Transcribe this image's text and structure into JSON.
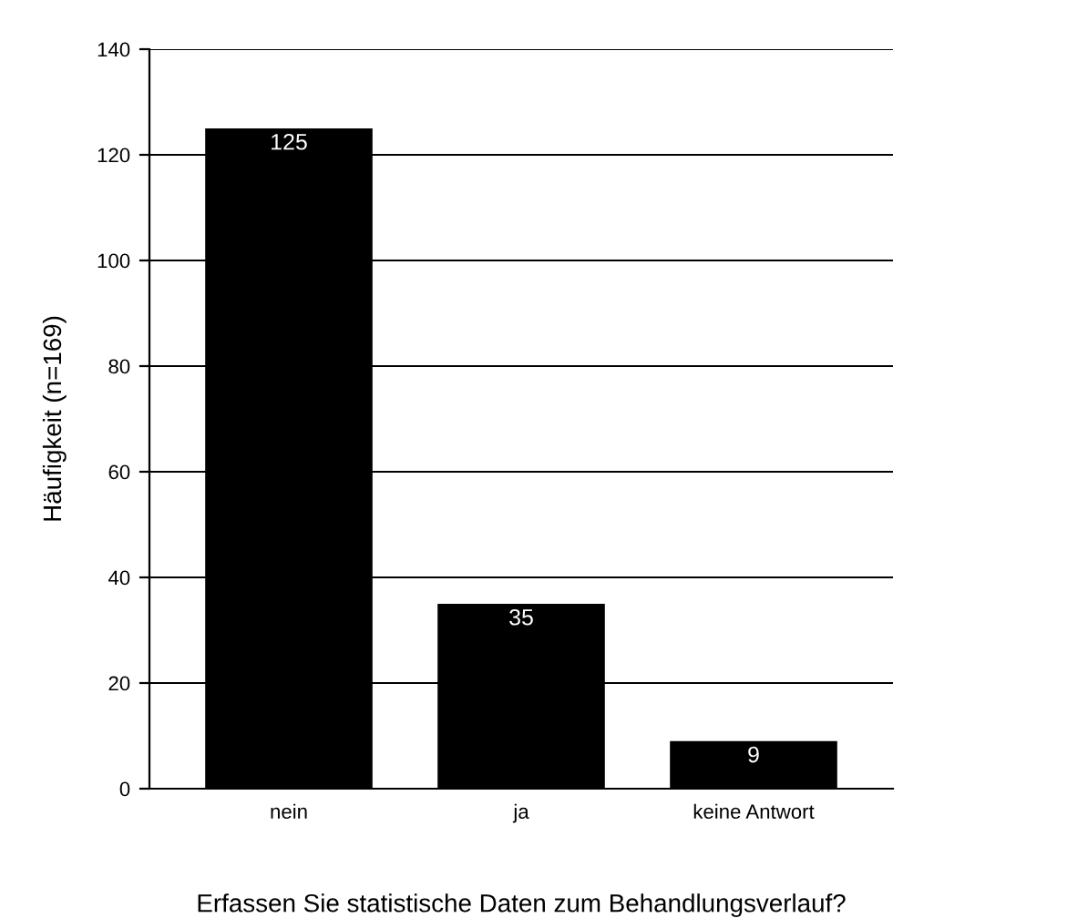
{
  "chart_data": {
    "type": "bar",
    "xlabel": "Erfassen Sie statistische Daten zum Behandlungsverlauf?",
    "ylabel": "Häufigkeit (n=169)",
    "categories": [
      "nein",
      "ja",
      "keine Antwort"
    ],
    "values": [
      125,
      35,
      9
    ],
    "color": "#000000",
    "ylim": [
      0,
      140
    ],
    "yticks": [
      0,
      20,
      40,
      60,
      80,
      100,
      120,
      140
    ],
    "grid": "y",
    "data_labels": true
  }
}
